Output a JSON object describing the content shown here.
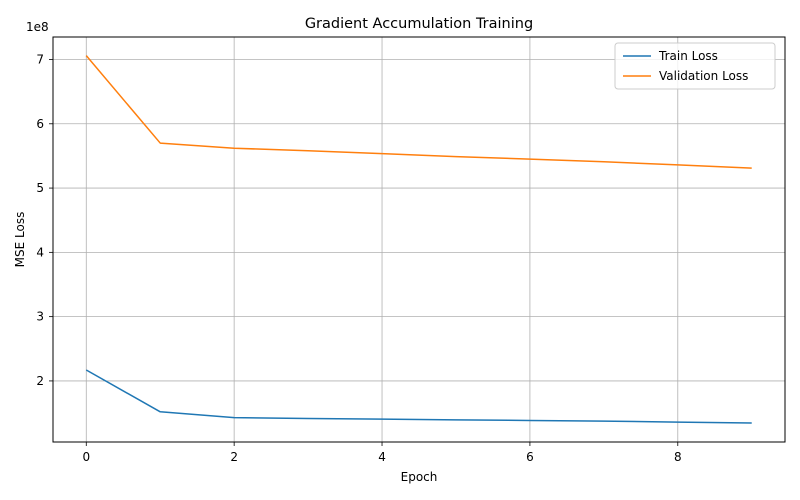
{
  "chart_data": {
    "type": "line",
    "title": "Gradient Accumulation Training",
    "xlabel": "Epoch",
    "ylabel": "MSE Loss",
    "y_multiplier_label": "1e8",
    "xlim": [
      -0.45,
      9.45
    ],
    "ylim": [
      1.05,
      7.35
    ],
    "x_ticks": [
      0,
      2,
      4,
      6,
      8
    ],
    "y_ticks": [
      2,
      3,
      4,
      5,
      6,
      7
    ],
    "grid": true,
    "legend_position": "top-right",
    "x": [
      0,
      1,
      2,
      3,
      4,
      5,
      6,
      7,
      8,
      9
    ],
    "series": [
      {
        "name": "Train Loss",
        "color": "#1f77b4",
        "values": [
          2.17,
          1.52,
          1.43,
          1.415,
          1.405,
          1.395,
          1.385,
          1.375,
          1.36,
          1.345
        ]
      },
      {
        "name": "Validation Loss",
        "color": "#ff7f0e",
        "values": [
          7.06,
          5.7,
          5.62,
          5.58,
          5.535,
          5.49,
          5.45,
          5.41,
          5.36,
          5.31
        ]
      }
    ]
  }
}
